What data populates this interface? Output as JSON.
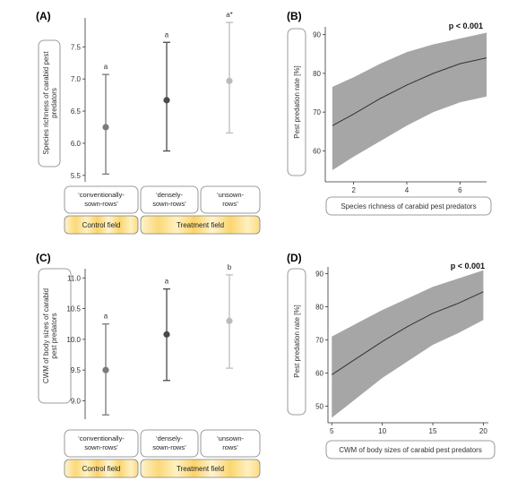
{
  "chart_data": [
    {
      "panel": "(A)",
      "type": "scatter",
      "ylabel": "Species richness of carabid pest predators",
      "ylim": [
        5.4,
        7.95
      ],
      "yticks": [
        "5.5",
        "6.0",
        "6.5",
        "7.0",
        "7.5"
      ],
      "categories": [
        "'conventionally-sown-rows'",
        "'densely-sown-rows'",
        "'unsown-rows'"
      ],
      "mean": [
        6.25,
        6.67,
        6.97
      ],
      "lower": [
        5.52,
        5.88,
        6.16
      ],
      "upper": [
        7.07,
        7.57,
        7.88
      ],
      "significance": [
        "a",
        "a",
        "a*"
      ],
      "colors": [
        "#7a7a7a",
        "#4a4a4a",
        "#bcbcbc"
      ],
      "fields": [
        "Control field",
        "Treatment field"
      ]
    },
    {
      "panel": "(B)",
      "type": "line",
      "xlabel": "Species richness of carabid pest predators",
      "ylabel": "Pest predation rate [%]",
      "xlim": [
        1.0,
        7.0
      ],
      "ylim": [
        52,
        92
      ],
      "xticks": [
        "2",
        "4",
        "6"
      ],
      "yticks": [
        "60",
        "70",
        "80",
        "90"
      ],
      "x": [
        1.2,
        2,
        3,
        4,
        5,
        6,
        7
      ],
      "fit": [
        66.5,
        69.5,
        73.5,
        77.0,
        80.0,
        82.5,
        84.0
      ],
      "lower": [
        55.0,
        58.5,
        62.5,
        66.5,
        70.0,
        72.5,
        74.0
      ],
      "upper": [
        76.5,
        79.0,
        82.5,
        85.5,
        87.5,
        89.0,
        90.5
      ],
      "annotation": "p < 0.001"
    },
    {
      "panel": "(C)",
      "type": "scatter",
      "ylabel": "CWM of body sizes of carabid pest predators",
      "ylim": [
        8.7,
        11.15
      ],
      "yticks": [
        "9.0",
        "9.5",
        "10.0",
        "10.5",
        "11.0"
      ],
      "categories": [
        "'conventionally-sown-rows'",
        "'densely-sown-rows'",
        "'unsown-rows'"
      ],
      "mean": [
        9.5,
        10.08,
        10.3
      ],
      "lower": [
        8.77,
        9.33,
        9.53
      ],
      "upper": [
        10.25,
        10.82,
        11.05
      ],
      "significance": [
        "a",
        "a",
        "b"
      ],
      "colors": [
        "#7a7a7a",
        "#4a4a4a",
        "#bcbcbc"
      ],
      "fields": [
        "Control field",
        "Treatment field"
      ]
    },
    {
      "panel": "(D)",
      "type": "line",
      "xlabel": "CWM of body sizes of carabid pest predators",
      "ylabel": "Pest predation rate [%]",
      "xlim": [
        4.8,
        20.5
      ],
      "ylim": [
        45,
        92
      ],
      "xticks": [
        "5",
        "10",
        "15",
        "20"
      ],
      "yticks": [
        "50",
        "60",
        "70",
        "80",
        "90"
      ],
      "x": [
        5,
        7.5,
        10,
        12.5,
        15,
        17.5,
        20
      ],
      "fit": [
        59.5,
        64.5,
        69.5,
        74.0,
        78.0,
        81.0,
        84.5
      ],
      "lower": [
        46.5,
        52.5,
        58.5,
        63.5,
        68.5,
        72.0,
        76.0
      ],
      "upper": [
        71.0,
        75.0,
        79.0,
        82.5,
        86.0,
        88.5,
        91.0
      ],
      "annotation": "p < 0.001"
    }
  ],
  "colors": {
    "band": "#a6a6a6",
    "fit_line": "#333333",
    "field_fill": "#fde7a2",
    "field_highlight": "#fbd464",
    "box_border": "#7f7f7f"
  }
}
